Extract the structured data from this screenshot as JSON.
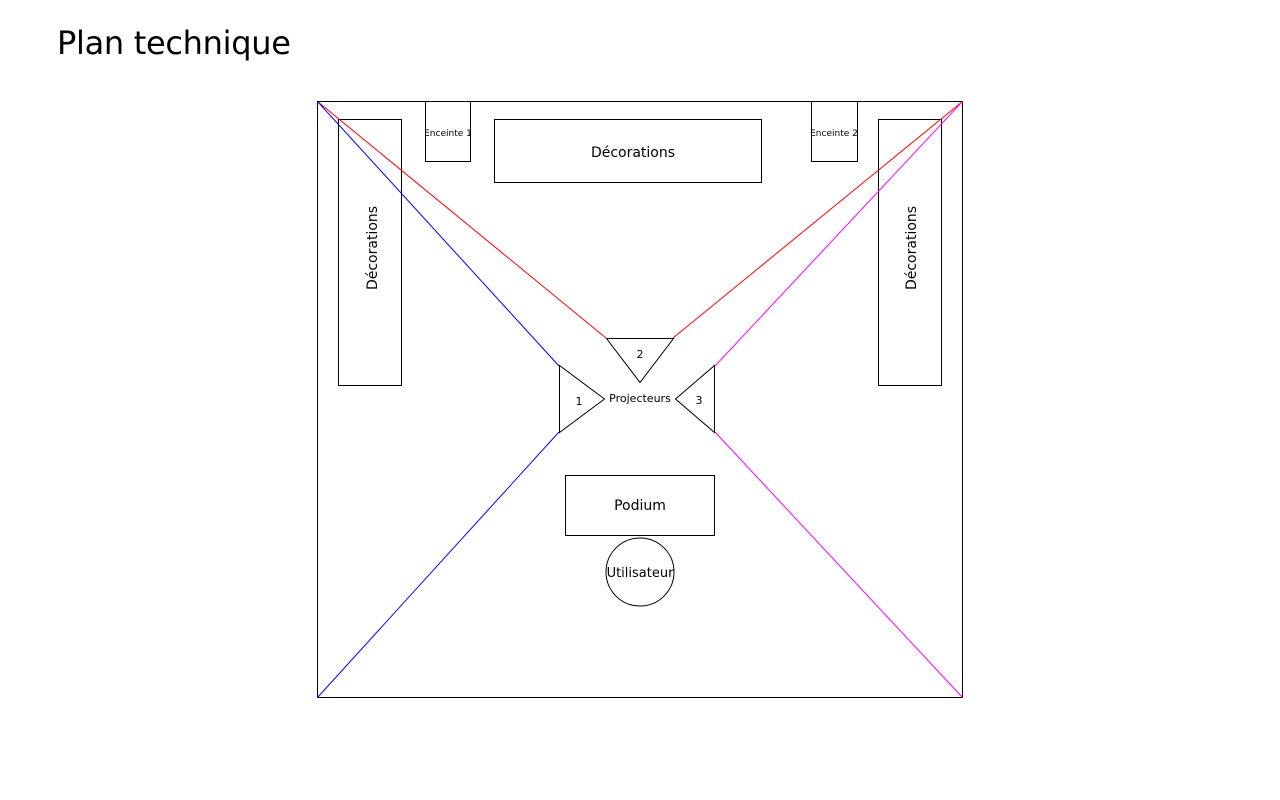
{
  "title": "Plan technique",
  "colors": {
    "projector_1_beam": "#0000ff",
    "projector_2_beam": "#ff0000",
    "projector_3_beam": "#ff00ff",
    "outline": "#000000"
  },
  "speakers": {
    "left": "Enceinte 1",
    "right": "Enceinte 2"
  },
  "decorations": {
    "top": "Décorations",
    "left": "Décorations",
    "right": "Décorations"
  },
  "projectors": {
    "group_label": "Projecteurs",
    "p1": "1",
    "p2": "2",
    "p3": "3"
  },
  "podium": "Podium",
  "user": "Utilisateur"
}
